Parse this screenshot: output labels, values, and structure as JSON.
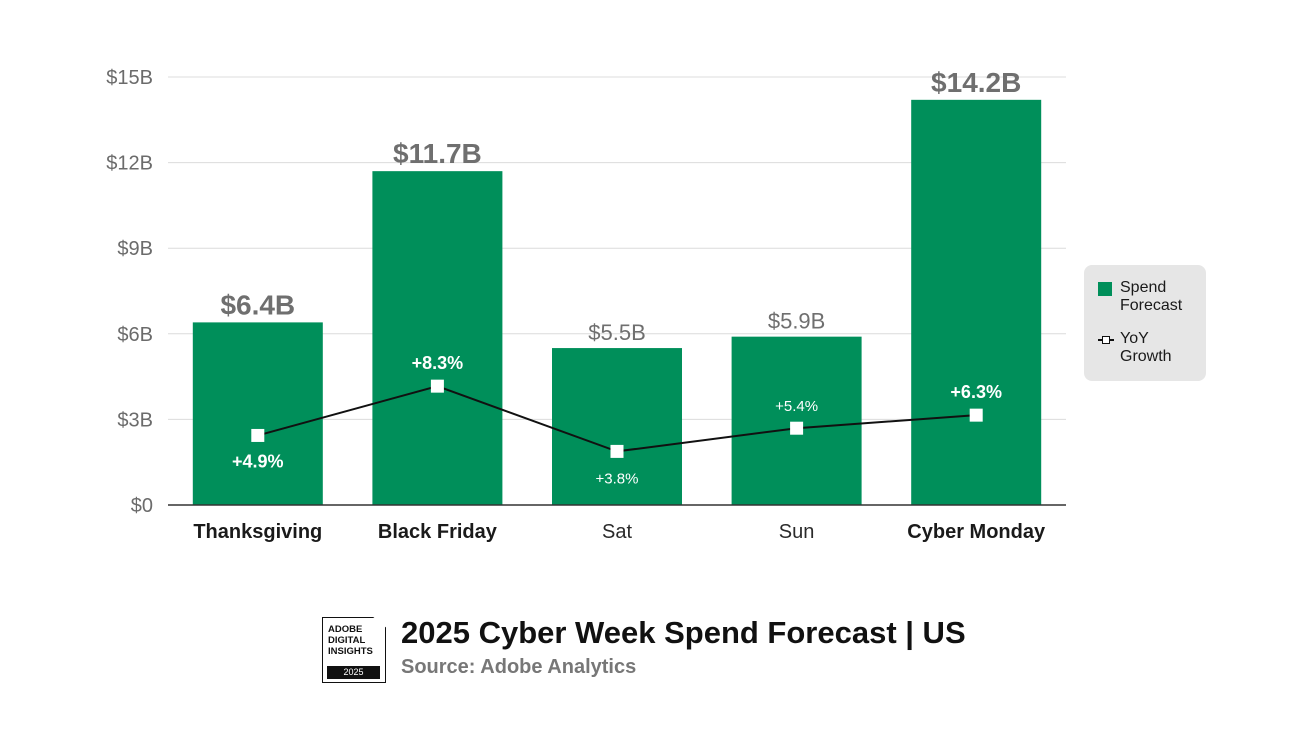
{
  "chart_data": {
    "type": "bar",
    "categories": [
      "Thanksgiving",
      "Black Friday",
      "Sat",
      "Sun",
      "Cyber Monday"
    ],
    "category_bold": [
      true,
      true,
      false,
      false,
      true
    ],
    "series": [
      {
        "name": "Spend Forecast",
        "type": "bar",
        "values": [
          6.4,
          11.7,
          5.5,
          5.9,
          14.2
        ],
        "labels": [
          "$6.4B",
          "$11.7B",
          "$5.5B",
          "$5.9B",
          "$14.2B"
        ],
        "color": "#008f5a"
      },
      {
        "name": "YoY Growth",
        "type": "line",
        "values": [
          4.9,
          8.3,
          3.8,
          5.4,
          6.3
        ],
        "labels": [
          "+4.9%",
          "+8.3%",
          "+3.8%",
          "+5.4%",
          "+6.3%"
        ],
        "color": "#111111"
      }
    ],
    "yticks": [
      "$0",
      "$3B",
      "$6B",
      "$9B",
      "$12B",
      "$15B"
    ],
    "ylim": [
      0,
      15
    ],
    "grid": true,
    "legend": "right",
    "highlight_color": "#008f5a",
    "muted_label_color": "#6f6f6f"
  },
  "legend": {
    "spend": "Spend Forecast",
    "growth": "YoY Growth"
  },
  "footer": {
    "badge_text": "ADOBE DIGITAL INSIGHTS",
    "badge_year": "2025",
    "title": "2025 Cyber Week Spend Forecast | US",
    "source": "Source: Adobe Analytics"
  }
}
